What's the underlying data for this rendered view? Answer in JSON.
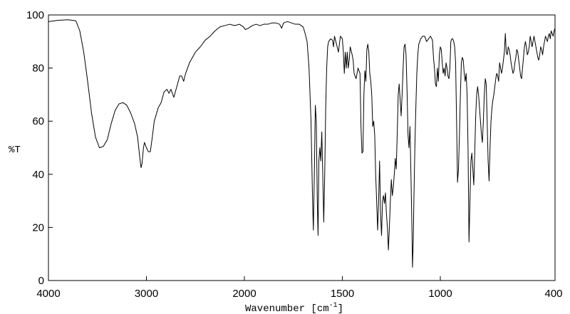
{
  "chart_data": {
    "type": "line",
    "title": "",
    "xlabel": "Wavenumber [cm",
    "xlabel_sup": "-1",
    "xlabel_close": "]",
    "ylabel": "%T",
    "xlim": [
      4000,
      400
    ],
    "ylim": [
      0,
      100
    ],
    "x_ticks": [
      4000,
      3000,
      2000,
      1500,
      1000,
      400
    ],
    "x_tick_labels": [
      "4000",
      "3000",
      "2000",
      "1500",
      "1000",
      "400"
    ],
    "y_ticks": [
      0,
      20,
      40,
      60,
      80,
      100
    ],
    "y_tick_labels": [
      "0",
      "20",
      "40",
      "60",
      "80",
      "100"
    ],
    "x_axis_note": "x-axis expanded scale below 2000 cm-1",
    "grid": false,
    "series": [
      {
        "color": "#000000",
        "points": [
          [
            4000,
            97.5
          ],
          [
            3900,
            98
          ],
          [
            3800,
            98.2
          ],
          [
            3720,
            97.8
          ],
          [
            3680,
            94
          ],
          [
            3640,
            86
          ],
          [
            3600,
            75
          ],
          [
            3560,
            63
          ],
          [
            3520,
            54
          ],
          [
            3480,
            50
          ],
          [
            3440,
            50.5
          ],
          [
            3400,
            53
          ],
          [
            3360,
            59
          ],
          [
            3320,
            64
          ],
          [
            3280,
            66.5
          ],
          [
            3240,
            67
          ],
          [
            3200,
            66
          ],
          [
            3160,
            63
          ],
          [
            3120,
            59
          ],
          [
            3090,
            54
          ],
          [
            3070,
            47
          ],
          [
            3055,
            42.5
          ],
          [
            3045,
            44
          ],
          [
            3030,
            50
          ],
          [
            3020,
            52
          ],
          [
            3000,
            50
          ],
          [
            2980,
            48.5
          ],
          [
            2960,
            48.5
          ],
          [
            2940,
            54
          ],
          [
            2920,
            60
          ],
          [
            2880,
            65
          ],
          [
            2850,
            67
          ],
          [
            2820,
            71
          ],
          [
            2790,
            72
          ],
          [
            2770,
            70.5
          ],
          [
            2750,
            72
          ],
          [
            2720,
            69
          ],
          [
            2690,
            73
          ],
          [
            2660,
            77
          ],
          [
            2640,
            77
          ],
          [
            2620,
            75
          ],
          [
            2600,
            78
          ],
          [
            2560,
            82
          ],
          [
            2500,
            86
          ],
          [
            2450,
            88
          ],
          [
            2400,
            90.5
          ],
          [
            2350,
            92
          ],
          [
            2300,
            94
          ],
          [
            2250,
            95.5
          ],
          [
            2200,
            96
          ],
          [
            2150,
            96.5
          ],
          [
            2100,
            96
          ],
          [
            2050,
            96.5
          ],
          [
            2010,
            95.5
          ],
          [
            1995,
            94.5
          ],
          [
            1980,
            95
          ],
          [
            1960,
            96
          ],
          [
            1940,
            96.5
          ],
          [
            1920,
            96
          ],
          [
            1900,
            96.5
          ],
          [
            1880,
            96.5
          ],
          [
            1860,
            97
          ],
          [
            1840,
            97
          ],
          [
            1820,
            96.5
          ],
          [
            1810,
            95
          ],
          [
            1800,
            97
          ],
          [
            1780,
            97.5
          ],
          [
            1760,
            97
          ],
          [
            1740,
            96.5
          ],
          [
            1720,
            96.5
          ],
          [
            1700,
            95.5
          ],
          [
            1690,
            93
          ],
          [
            1680,
            90
          ],
          [
            1670,
            80
          ],
          [
            1660,
            60
          ],
          [
            1652,
            30
          ],
          [
            1648,
            19
          ],
          [
            1643,
            40
          ],
          [
            1638,
            66
          ],
          [
            1633,
            60
          ],
          [
            1628,
            30
          ],
          [
            1624,
            17
          ],
          [
            1620,
            45
          ],
          [
            1615,
            50
          ],
          [
            1610,
            45
          ],
          [
            1605,
            56
          ],
          [
            1600,
            40
          ],
          [
            1595,
            22
          ],
          [
            1590,
            40
          ],
          [
            1585,
            65
          ],
          [
            1580,
            80
          ],
          [
            1575,
            88
          ],
          [
            1570,
            90
          ],
          [
            1560,
            91
          ],
          [
            1550,
            90.5
          ],
          [
            1545,
            88
          ],
          [
            1540,
            92
          ],
          [
            1530,
            89
          ],
          [
            1520,
            86
          ],
          [
            1510,
            92
          ],
          [
            1500,
            91
          ],
          [
            1495,
            86
          ],
          [
            1490,
            78
          ],
          [
            1485,
            86
          ],
          [
            1480,
            80
          ],
          [
            1475,
            86
          ],
          [
            1470,
            80
          ],
          [
            1465,
            83
          ],
          [
            1460,
            88
          ],
          [
            1450,
            85
          ],
          [
            1445,
            83
          ],
          [
            1440,
            78
          ],
          [
            1430,
            76
          ],
          [
            1420,
            80
          ],
          [
            1410,
            78
          ],
          [
            1405,
            58
          ],
          [
            1400,
            48
          ],
          [
            1395,
            48.5
          ],
          [
            1390,
            70
          ],
          [
            1385,
            79
          ],
          [
            1380,
            75
          ],
          [
            1375,
            87
          ],
          [
            1370,
            89
          ],
          [
            1365,
            86
          ],
          [
            1360,
            78
          ],
          [
            1355,
            75
          ],
          [
            1350,
            70
          ],
          [
            1345,
            58
          ],
          [
            1340,
            60
          ],
          [
            1335,
            55
          ],
          [
            1330,
            40
          ],
          [
            1325,
            30
          ],
          [
            1320,
            19
          ],
          [
            1315,
            30
          ],
          [
            1310,
            45
          ],
          [
            1305,
            25
          ],
          [
            1300,
            17
          ],
          [
            1295,
            30
          ],
          [
            1290,
            32
          ],
          [
            1285,
            29
          ],
          [
            1280,
            33
          ],
          [
            1275,
            25
          ],
          [
            1270,
            20
          ],
          [
            1265,
            11.5
          ],
          [
            1260,
            20
          ],
          [
            1255,
            30
          ],
          [
            1250,
            38
          ],
          [
            1245,
            32
          ],
          [
            1240,
            35
          ],
          [
            1235,
            40
          ],
          [
            1230,
            46
          ],
          [
            1225,
            42
          ],
          [
            1220,
            55
          ],
          [
            1215,
            70
          ],
          [
            1210,
            74
          ],
          [
            1205,
            68
          ],
          [
            1200,
            62
          ],
          [
            1195,
            70
          ],
          [
            1190,
            80
          ],
          [
            1185,
            88
          ],
          [
            1180,
            89
          ],
          [
            1175,
            85
          ],
          [
            1170,
            72
          ],
          [
            1165,
            55
          ],
          [
            1160,
            50
          ],
          [
            1155,
            58
          ],
          [
            1150,
            40
          ],
          [
            1145,
            20
          ],
          [
            1142,
            5
          ],
          [
            1138,
            15
          ],
          [
            1135,
            30
          ],
          [
            1130,
            50
          ],
          [
            1125,
            65
          ],
          [
            1120,
            78
          ],
          [
            1115,
            85
          ],
          [
            1110,
            89
          ],
          [
            1100,
            91
          ],
          [
            1090,
            92
          ],
          [
            1080,
            92
          ],
          [
            1070,
            90
          ],
          [
            1060,
            91
          ],
          [
            1050,
            92
          ],
          [
            1040,
            90.5
          ],
          [
            1035,
            84
          ],
          [
            1030,
            80
          ],
          [
            1025,
            74
          ],
          [
            1020,
            73
          ],
          [
            1015,
            80
          ],
          [
            1010,
            75
          ],
          [
            1005,
            85
          ],
          [
            1000,
            88
          ],
          [
            995,
            87
          ],
          [
            990,
            82
          ],
          [
            985,
            78
          ],
          [
            980,
            80
          ],
          [
            975,
            77
          ],
          [
            970,
            82
          ],
          [
            965,
            80
          ],
          [
            960,
            77
          ],
          [
            955,
            76
          ],
          [
            950,
            80
          ],
          [
            945,
            90
          ],
          [
            940,
            91
          ],
          [
            935,
            91
          ],
          [
            930,
            90
          ],
          [
            925,
            88
          ],
          [
            920,
            82
          ],
          [
            915,
            60
          ],
          [
            910,
            37
          ],
          [
            905,
            42
          ],
          [
            900,
            55
          ],
          [
            895,
            70
          ],
          [
            890,
            82
          ],
          [
            885,
            84
          ],
          [
            880,
            83
          ],
          [
            875,
            78
          ],
          [
            870,
            75
          ],
          [
            865,
            78
          ],
          [
            860,
            70
          ],
          [
            855,
            50
          ],
          [
            850,
            14.5
          ],
          [
            845,
            30
          ],
          [
            840,
            45
          ],
          [
            835,
            48
          ],
          [
            830,
            42
          ],
          [
            825,
            36
          ],
          [
            820,
            48
          ],
          [
            815,
            62
          ],
          [
            810,
            70
          ],
          [
            805,
            73
          ],
          [
            800,
            70
          ],
          [
            795,
            65
          ],
          [
            790,
            60
          ],
          [
            785,
            55
          ],
          [
            780,
            52
          ],
          [
            775,
            60
          ],
          [
            770,
            70
          ],
          [
            765,
            76
          ],
          [
            760,
            74
          ],
          [
            755,
            60
          ],
          [
            750,
            45
          ],
          [
            745,
            37.5
          ],
          [
            740,
            50
          ],
          [
            735,
            60
          ],
          [
            730,
            65
          ],
          [
            725,
            68
          ],
          [
            720,
            70
          ],
          [
            715,
            73
          ],
          [
            710,
            76
          ],
          [
            705,
            78
          ],
          [
            700,
            77
          ],
          [
            695,
            75
          ],
          [
            690,
            82
          ],
          [
            685,
            80
          ],
          [
            680,
            78
          ],
          [
            675,
            80
          ],
          [
            670,
            83
          ],
          [
            665,
            86
          ],
          [
            660,
            93
          ],
          [
            655,
            86
          ],
          [
            650,
            85
          ],
          [
            645,
            88
          ],
          [
            640,
            87
          ],
          [
            635,
            85
          ],
          [
            630,
            82
          ],
          [
            625,
            80
          ],
          [
            620,
            78
          ],
          [
            615,
            79
          ],
          [
            610,
            82
          ],
          [
            605,
            84
          ],
          [
            600,
            87
          ],
          [
            595,
            86
          ],
          [
            590,
            83
          ],
          [
            585,
            80
          ],
          [
            580,
            77
          ],
          [
            575,
            76
          ],
          [
            570,
            80
          ],
          [
            565,
            84
          ],
          [
            560,
            88
          ],
          [
            555,
            90
          ],
          [
            550,
            88
          ],
          [
            545,
            85
          ],
          [
            540,
            86
          ],
          [
            535,
            88
          ],
          [
            530,
            92
          ],
          [
            525,
            90
          ],
          [
            520,
            88
          ],
          [
            515,
            90
          ],
          [
            510,
            92
          ],
          [
            505,
            90
          ],
          [
            500,
            88
          ],
          [
            495,
            86
          ],
          [
            490,
            84
          ],
          [
            485,
            83
          ],
          [
            480,
            85
          ],
          [
            475,
            88
          ],
          [
            470,
            87
          ],
          [
            465,
            85
          ],
          [
            460,
            88
          ],
          [
            455,
            90
          ],
          [
            450,
            92
          ],
          [
            445,
            91
          ],
          [
            440,
            90
          ],
          [
            435,
            92
          ],
          [
            430,
            93
          ],
          [
            425,
            91
          ],
          [
            420,
            94
          ],
          [
            415,
            93
          ],
          [
            410,
            92
          ],
          [
            405,
            94
          ],
          [
            400,
            95
          ]
        ]
      }
    ]
  }
}
